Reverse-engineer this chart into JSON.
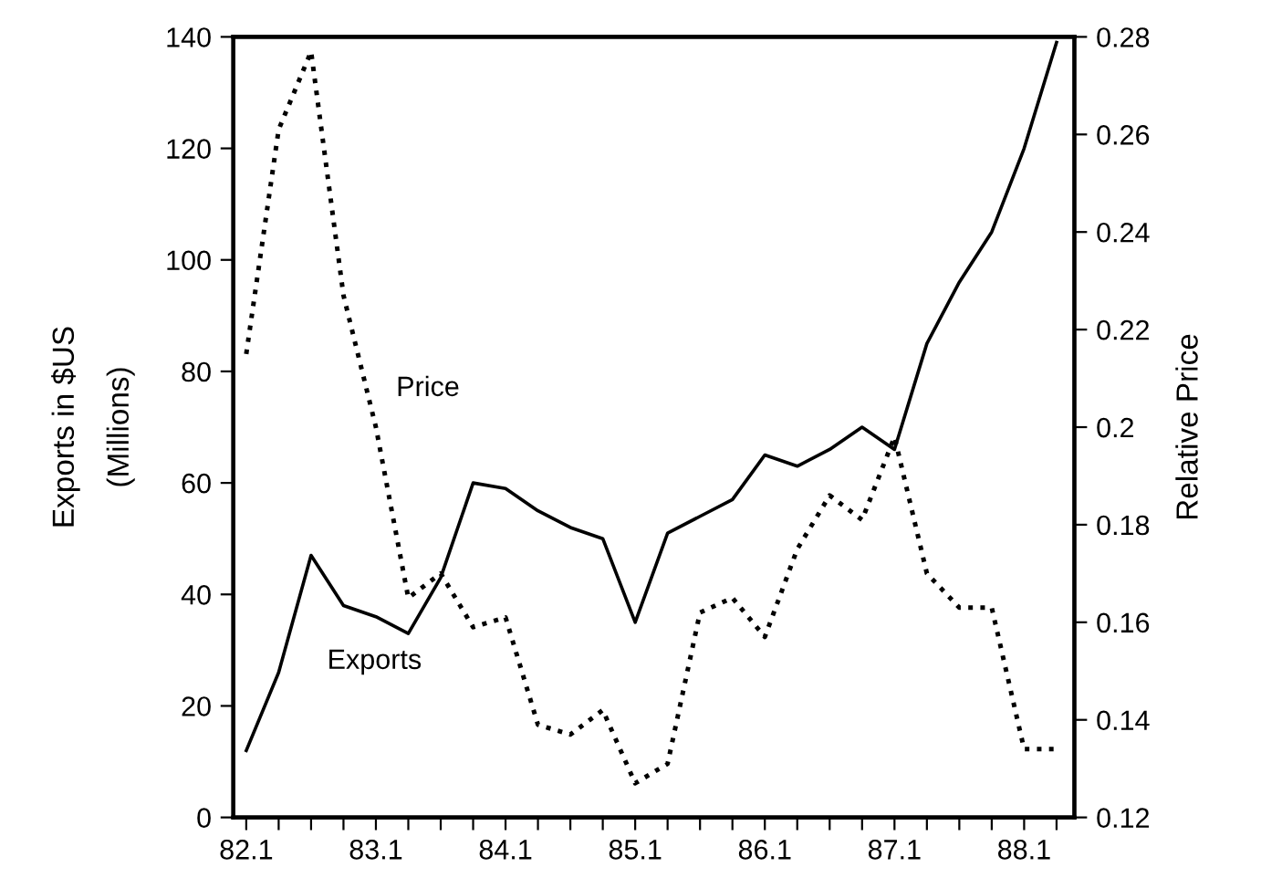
{
  "chart_data": {
    "type": "line",
    "ylabel": "Exports in $US\n(Millions)",
    "y2label": "Relative Price",
    "categories": [
      "82.1",
      null,
      null,
      null,
      "83.1",
      null,
      null,
      null,
      "84.1",
      null,
      null,
      null,
      "85.1",
      null,
      null,
      null,
      "86.1",
      null,
      null,
      null,
      "87.1",
      null,
      null,
      null,
      "88.1",
      null
    ],
    "series": [
      {
        "name": "Exports",
        "color": "#000000",
        "line_style": "solid",
        "values": [
          12,
          26,
          47,
          38,
          36,
          33,
          43,
          60,
          59,
          55,
          52,
          50,
          35,
          51,
          54,
          57,
          65,
          63,
          66,
          70,
          66,
          85,
          96,
          105,
          120,
          139
        ]
      },
      {
        "name": "Price",
        "color": "#000000",
        "line_style": "dotted",
        "axis": "y2",
        "values": [
          0.215,
          0.261,
          0.277,
          0.227,
          0.2,
          0.165,
          0.17,
          0.159,
          0.161,
          0.139,
          0.137,
          0.142,
          0.127,
          0.131,
          0.162,
          0.165,
          0.157,
          0.175,
          0.186,
          0.181,
          0.198,
          0.17,
          0.163,
          0.163,
          0.134,
          0.134
        ]
      }
    ],
    "ylim": [
      0,
      140
    ],
    "yticks": [
      0,
      20,
      40,
      60,
      80,
      100,
      120,
      140
    ],
    "y2lim": [
      0.12,
      0.28
    ],
    "y2ticks": [
      0.12,
      0.14,
      0.16,
      0.18,
      0.2,
      0.22,
      0.24,
      0.26,
      0.28
    ],
    "grid": false,
    "legend": false
  }
}
